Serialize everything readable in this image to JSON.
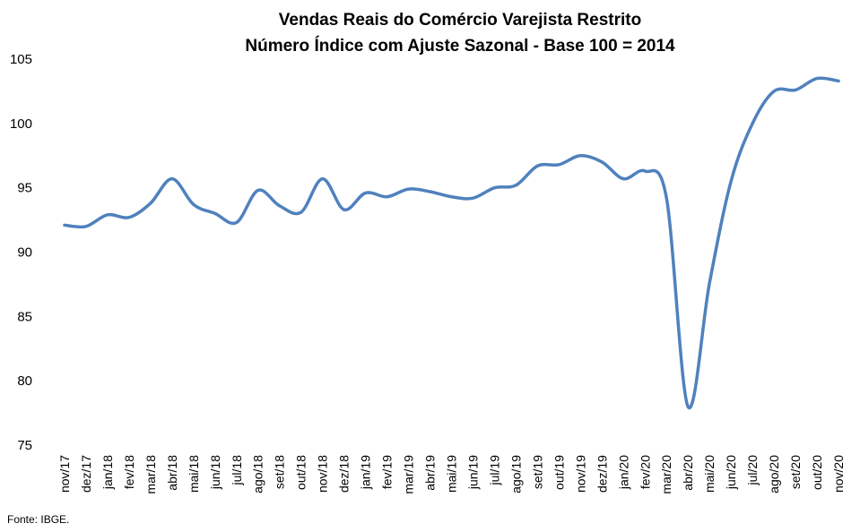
{
  "source": "Fonte: IBGE.",
  "chart_data": {
    "type": "line",
    "title": "Vendas Reais do Comércio Varejista Restrito",
    "subtitle": "Número Índice com Ajuste Sazonal - Base 100 = 2014",
    "xlabel": "",
    "ylabel": "",
    "ylim": [
      75,
      105
    ],
    "yticks": [
      75,
      80,
      85,
      90,
      95,
      100,
      105
    ],
    "grid": false,
    "legend": "none",
    "line_color": "#4F81BD",
    "categories": [
      "nov/17",
      "dez/17",
      "jan/18",
      "fev/18",
      "mar/18",
      "abr/18",
      "mai/18",
      "jun/18",
      "jul/18",
      "ago/18",
      "set/18",
      "out/18",
      "nov/18",
      "dez/18",
      "jan/19",
      "fev/19",
      "mar/19",
      "abr/19",
      "mai/19",
      "jun/19",
      "jul/19",
      "ago/19",
      "set/19",
      "out/19",
      "nov/19",
      "dez/19",
      "jan/20",
      "fev/20",
      "mar/20",
      "abr/20",
      "mai/20",
      "jun/20",
      "jul/20",
      "ago/20",
      "set/20",
      "out/20",
      "nov/20"
    ],
    "values": [
      92.1,
      92.0,
      92.9,
      92.7,
      93.8,
      95.7,
      93.7,
      93.0,
      92.3,
      94.8,
      93.6,
      93.1,
      95.7,
      93.3,
      94.6,
      94.3,
      94.9,
      94.7,
      94.3,
      94.2,
      95.0,
      95.2,
      96.7,
      96.8,
      97.5,
      97.0,
      95.7,
      96.3,
      94.2,
      78.0,
      87.6,
      95.5,
      100.0,
      102.5,
      102.6,
      103.5,
      103.3
    ]
  }
}
